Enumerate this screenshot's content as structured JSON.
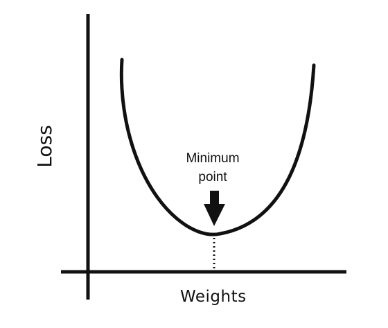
{
  "diagram": {
    "x_axis_label": "Weights",
    "y_axis_label": "Loss",
    "annotation": {
      "line1": "Minimum",
      "line2": "point"
    },
    "colors": {
      "stroke": "#111111",
      "background": "#ffffff"
    }
  }
}
